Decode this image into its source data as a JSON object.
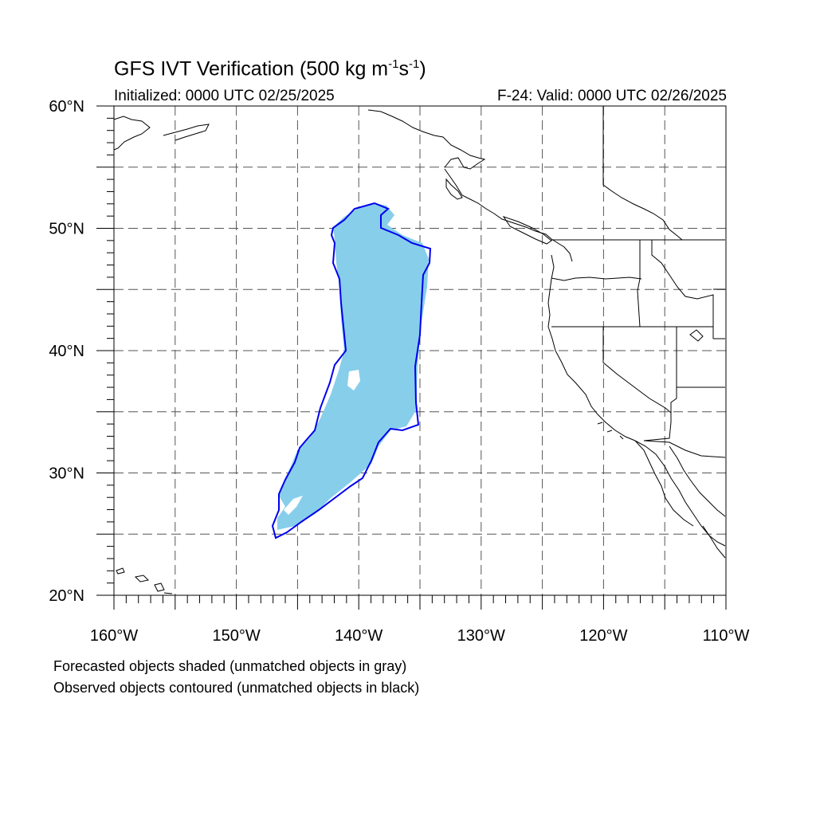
{
  "title": {
    "main": "GFS IVT Verification (500 kg m",
    "exp1": "-1",
    "mid": "s",
    "exp2": "-1",
    "end": ")"
  },
  "subtitle_left": "Initialized: 0000 UTC 02/25/2025",
  "subtitle_right": "F-24: Valid: 0000 UTC 02/26/2025",
  "notes": [
    "Forecasted objects shaded (unmatched objects in gray)",
    "Observed objects contoured (unmatched objects in black)"
  ],
  "map": {
    "lon_range": [
      -160,
      -110
    ],
    "lat_range": [
      20,
      60
    ],
    "lon_labels": [
      "160°W",
      "150°W",
      "140°W",
      "130°W",
      "120°W",
      "110°W"
    ],
    "lat_labels": [
      "20°N",
      "30°N",
      "40°N",
      "50°N",
      "60°N"
    ],
    "colors": {
      "forecast_fill": "#87CEEB",
      "observed_contour": "#0000EE",
      "coastline": "#000000",
      "grid": "#555555"
    }
  }
}
